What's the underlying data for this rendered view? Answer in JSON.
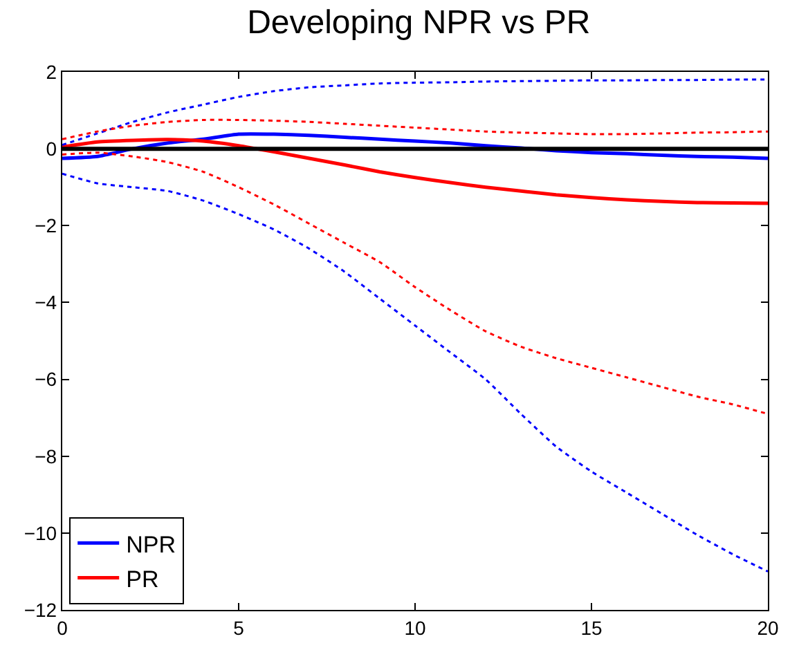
{
  "chart_data": {
    "type": "line",
    "title": "Developing NPR vs PR",
    "x": [
      0,
      1,
      2,
      3,
      4,
      5,
      6,
      7,
      8,
      9,
      10,
      11,
      12,
      13,
      14,
      15,
      16,
      17,
      18,
      19,
      20
    ],
    "series": [
      {
        "name": "NPR",
        "color": "#0000ff",
        "line_style": "solid",
        "values": [
          -0.25,
          -0.2,
          0.0,
          0.15,
          0.25,
          0.38,
          0.38,
          0.35,
          0.3,
          0.25,
          0.2,
          0.15,
          0.08,
          0.02,
          -0.05,
          -0.1,
          -0.13,
          -0.17,
          -0.2,
          -0.22,
          -0.25
        ]
      },
      {
        "name": "PR",
        "color": "#ff0000",
        "line_style": "solid",
        "values": [
          0.05,
          0.18,
          0.22,
          0.24,
          0.2,
          0.08,
          -0.08,
          -0.25,
          -0.42,
          -0.6,
          -0.75,
          -0.88,
          -1.0,
          -1.1,
          -1.2,
          -1.27,
          -1.33,
          -1.37,
          -1.4,
          -1.41,
          -1.42
        ]
      },
      {
        "color": "#0000ff",
        "line_style": "dotted",
        "values": [
          0.1,
          0.4,
          0.7,
          0.95,
          1.15,
          1.35,
          1.5,
          1.6,
          1.65,
          1.7,
          1.72,
          1.73,
          1.75,
          1.76,
          1.77,
          1.78,
          1.78,
          1.79,
          1.79,
          1.8,
          1.8
        ]
      },
      {
        "color": "#0000ff",
        "line_style": "dotted",
        "values": [
          -0.65,
          -0.9,
          -1.0,
          -1.1,
          -1.35,
          -1.7,
          -2.1,
          -2.6,
          -3.2,
          -3.9,
          -4.6,
          -5.3,
          -6.0,
          -6.9,
          -7.75,
          -8.4,
          -8.95,
          -9.5,
          -10.05,
          -10.55,
          -11.0
        ]
      },
      {
        "color": "#ff0000",
        "line_style": "dotted",
        "values": [
          0.25,
          0.45,
          0.6,
          0.7,
          0.75,
          0.75,
          0.73,
          0.7,
          0.65,
          0.6,
          0.55,
          0.5,
          0.45,
          0.42,
          0.4,
          0.38,
          0.38,
          0.4,
          0.42,
          0.43,
          0.45
        ]
      },
      {
        "color": "#ff0000",
        "line_style": "dotted",
        "values": [
          -0.15,
          -0.1,
          -0.2,
          -0.35,
          -0.6,
          -1.0,
          -1.45,
          -1.95,
          -2.45,
          -2.95,
          -3.6,
          -4.2,
          -4.75,
          -5.15,
          -5.45,
          -5.7,
          -5.95,
          -6.2,
          -6.45,
          -6.65,
          -6.9
        ]
      }
    ],
    "ref_lines": [
      {
        "axis": "y",
        "value": 0,
        "color": "#000000",
        "line_style": "solid"
      }
    ],
    "xlim": [
      0,
      20
    ],
    "xticks": [
      0,
      5,
      10,
      15,
      20
    ],
    "ylim": [
      -12,
      2
    ],
    "yticks": [
      -12,
      -10,
      -8,
      -6,
      -4,
      -2,
      0,
      2
    ],
    "legend": "bottom left",
    "marker": "none"
  }
}
